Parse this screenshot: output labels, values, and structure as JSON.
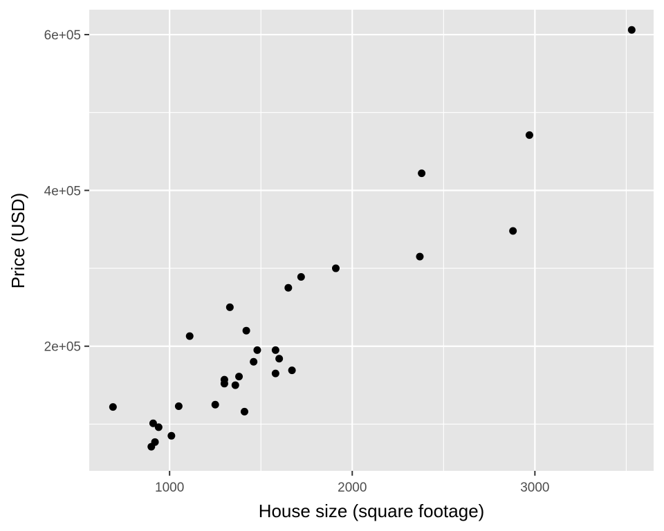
{
  "chart_data": {
    "type": "scatter",
    "title": "",
    "xlabel": "House size (square footage)",
    "ylabel": "Price (USD)",
    "xlim": [
      560,
      3650
    ],
    "ylim": [
      40000,
      632000
    ],
    "x_ticks": [
      1000,
      2000,
      3000
    ],
    "x_tick_labels": [
      "1000",
      "2000",
      "3000"
    ],
    "y_ticks": [
      200000,
      400000,
      600000
    ],
    "y_tick_labels": [
      "2e+05",
      "4e+05",
      "6e+05"
    ],
    "grid": true,
    "legend": "none",
    "colors": {
      "panel": "#e5e5e5",
      "grid": "#ffffff",
      "point": "#000000",
      "tick_text": "#4d4d4d"
    },
    "points": [
      {
        "x": 3530,
        "y": 606000
      },
      {
        "x": 2970,
        "y": 471000
      },
      {
        "x": 2380,
        "y": 422000
      },
      {
        "x": 2880,
        "y": 348000
      },
      {
        "x": 2370,
        "y": 315000
      },
      {
        "x": 1910,
        "y": 300000
      },
      {
        "x": 1720,
        "y": 289000
      },
      {
        "x": 1650,
        "y": 275000
      },
      {
        "x": 1330,
        "y": 250000
      },
      {
        "x": 1420,
        "y": 220000
      },
      {
        "x": 1110,
        "y": 213000
      },
      {
        "x": 1480,
        "y": 195000
      },
      {
        "x": 1580,
        "y": 195000
      },
      {
        "x": 1600,
        "y": 184000
      },
      {
        "x": 1460,
        "y": 180000
      },
      {
        "x": 1670,
        "y": 169000
      },
      {
        "x": 1580,
        "y": 165000
      },
      {
        "x": 1380,
        "y": 161000
      },
      {
        "x": 1300,
        "y": 157000
      },
      {
        "x": 1300,
        "y": 152000
      },
      {
        "x": 1360,
        "y": 150000
      },
      {
        "x": 1250,
        "y": 125000
      },
      {
        "x": 1050,
        "y": 123000
      },
      {
        "x": 690,
        "y": 122000
      },
      {
        "x": 1410,
        "y": 116000
      },
      {
        "x": 910,
        "y": 101000
      },
      {
        "x": 940,
        "y": 96000
      },
      {
        "x": 1010,
        "y": 85000
      },
      {
        "x": 920,
        "y": 77000
      },
      {
        "x": 900,
        "y": 71000
      }
    ]
  }
}
